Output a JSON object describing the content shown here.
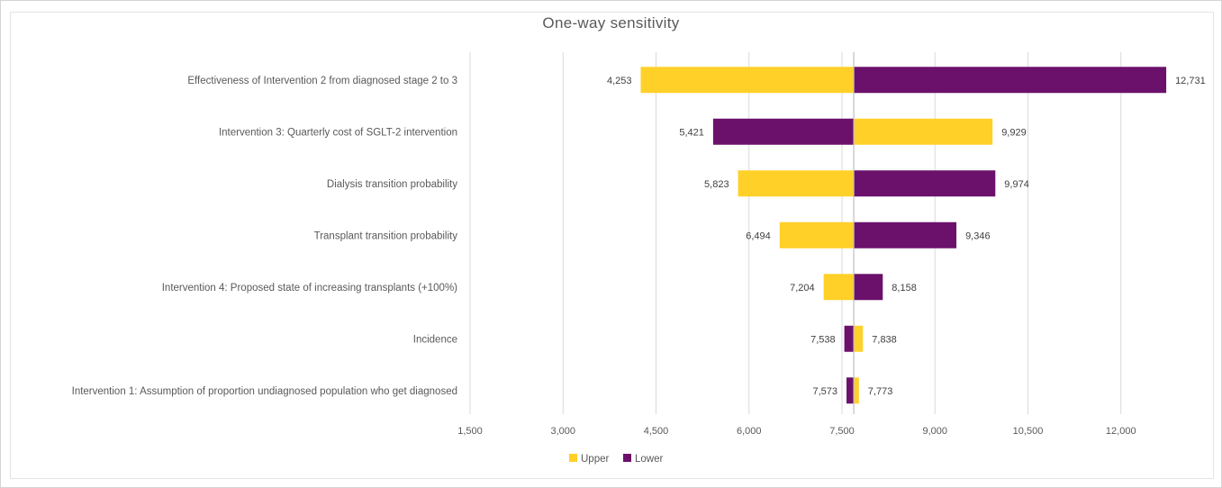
{
  "chart_data": {
    "type": "bar",
    "orientation": "horizontal",
    "subtype": "tornado",
    "title": "One-way sensitivity",
    "baseline": 7690,
    "xlim": [
      1500,
      13500
    ],
    "xticks": [
      1500,
      3000,
      4500,
      6000,
      7500,
      9000,
      10500,
      12000
    ],
    "xtick_labels": [
      "1,500",
      "3,000",
      "4,500",
      "6,000",
      "7,500",
      "9,000",
      "10,500",
      "12,000"
    ],
    "categories": [
      "Effectiveness of Intervention 2 from diagnosed stage 2 to 3",
      "Intervention 3: Quarterly cost of SGLT-2 intervention",
      "Dialysis transition probability",
      "Transplant transition probability",
      "Intervention 4: Proposed state of increasing transplants (+100%)",
      "Incidence",
      "Intervention 1: Assumption of proportion undiagnosed population who get diagnosed"
    ],
    "series": [
      {
        "name": "Upper",
        "color": "#FFD028",
        "values": [
          4253,
          9929,
          5823,
          6494,
          7204,
          7838,
          7773
        ],
        "labels": [
          "4,253",
          "9,929",
          "5,823",
          "6,494",
          "7,204",
          "7,838",
          "7,773"
        ]
      },
      {
        "name": "Lower",
        "color": "#6B116B",
        "values": [
          12731,
          5421,
          9974,
          9346,
          8158,
          7538,
          7573
        ],
        "labels": [
          "12,731",
          "5,421",
          "9,974",
          "9,346",
          "8,158",
          "7,538",
          "7,573"
        ]
      }
    ],
    "legend": [
      "Upper",
      "Lower"
    ],
    "legend_position": "bottom",
    "grid": true
  }
}
